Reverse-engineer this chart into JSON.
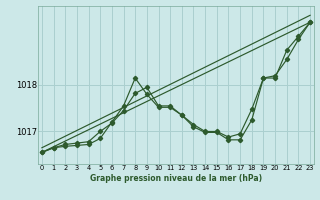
{
  "xlabel": "Graphe pression niveau de la mer (hPa)",
  "ylabel": "",
  "bg_color": "#cce8e8",
  "grid_color": "#aacfcf",
  "line_color": "#2d5a2d",
  "series": [
    {
      "x": [
        0,
        1,
        2,
        3,
        4,
        5,
        6,
        7,
        8,
        9,
        10,
        11,
        12,
        13,
        14,
        15,
        16,
        17,
        18,
        19,
        20,
        21,
        22,
        23
      ],
      "y": [
        1016.55,
        1016.65,
        1016.68,
        1016.7,
        1016.72,
        1016.85,
        1017.2,
        1017.55,
        1018.15,
        1017.8,
        1017.52,
        1017.52,
        1017.35,
        1017.1,
        1016.98,
        1016.98,
        1016.82,
        1016.82,
        1017.25,
        1018.15,
        1018.15,
        1018.75,
        1019.05,
        1019.35
      ]
    },
    {
      "x": [
        0,
        1,
        2,
        3,
        4,
        5,
        6,
        7,
        8,
        9,
        10,
        11,
        12,
        13,
        14,
        15,
        16,
        17,
        18,
        19,
        20,
        21,
        22,
        23
      ],
      "y": [
        1016.55,
        1016.65,
        1016.72,
        1016.75,
        1016.78,
        1017.0,
        1017.18,
        1017.45,
        1017.82,
        1017.95,
        1017.55,
        1017.55,
        1017.35,
        1017.15,
        1017.0,
        1017.0,
        1016.88,
        1016.95,
        1017.48,
        1018.15,
        1018.2,
        1018.55,
        1018.98,
        1019.35
      ]
    },
    {
      "x": [
        0,
        23
      ],
      "y": [
        1016.55,
        1019.35
      ]
    },
    {
      "x": [
        0,
        23
      ],
      "y": [
        1016.65,
        1019.5
      ]
    }
  ],
  "series_markers": [
    true,
    true,
    false,
    false
  ],
  "ylim": [
    1016.3,
    1019.7
  ],
  "xlim": [
    -0.3,
    23.3
  ],
  "yticks": [
    1017,
    1018
  ],
  "xticks": [
    0,
    1,
    2,
    3,
    4,
    5,
    6,
    7,
    8,
    9,
    10,
    11,
    12,
    13,
    14,
    15,
    16,
    17,
    18,
    19,
    20,
    21,
    22,
    23
  ]
}
